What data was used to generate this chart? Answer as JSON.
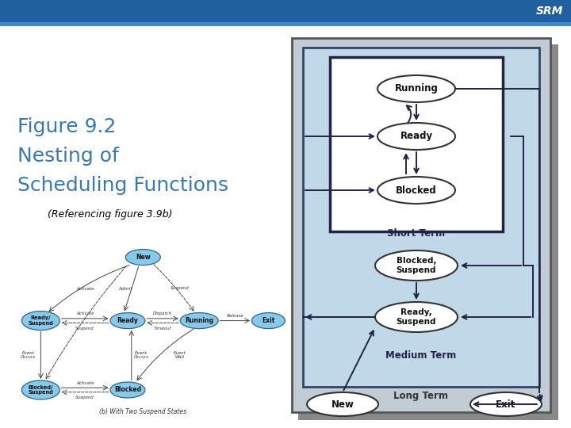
{
  "title_line1": "Figure 9.2",
  "title_line2": "Nesting of",
  "title_line3": "Scheduling Functions",
  "subtitle": "(Referencing figure 3.9b)",
  "title_color": "#3878b0",
  "subtitle_color": "#000000",
  "header_bar_color": "#2060a0",
  "background_color": "#ffffff",
  "long_term_label": "Long Term",
  "medium_term_label": "Medium Term",
  "short_term_label": "Short Term",
  "node_fill_right": "#ffffff",
  "node_fill_left": "#88c8e8",
  "node_outline_right": "#333333",
  "node_outline_left": "#336688",
  "arrow_color": "#222244",
  "small_caption": "(b) With Two Suspend States"
}
